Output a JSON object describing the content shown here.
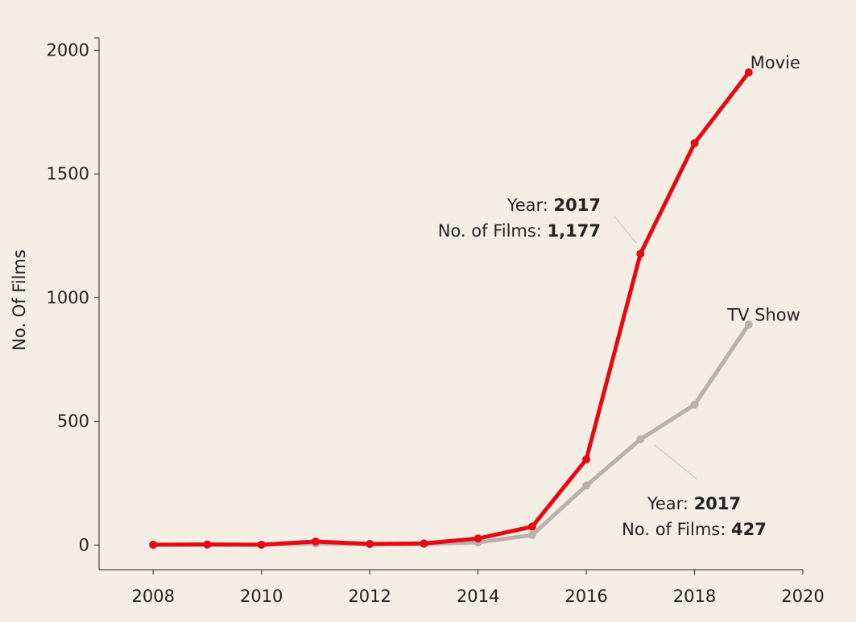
{
  "chart_data": {
    "type": "line",
    "title": "",
    "xlabel": "",
    "ylabel": "No. Of Films",
    "xlim": [
      2007,
      2020
    ],
    "ylim": [
      -100,
      2050
    ],
    "x_ticks": [
      "2008",
      "2010",
      "2012",
      "2014",
      "2016",
      "2018",
      "2020"
    ],
    "y_ticks": [
      "0",
      "500",
      "1000",
      "1500",
      "2000"
    ],
    "grid": false,
    "series": [
      {
        "name": "TV Show",
        "color": "#bab0ac",
        "x": [
          2008,
          2009,
          2010,
          2011,
          2012,
          2013,
          2014,
          2015,
          2016,
          2017,
          2018,
          2019
        ],
        "values": [
          1,
          1,
          1,
          6,
          3,
          4,
          10,
          40,
          240,
          427,
          567,
          891
        ]
      },
      {
        "name": "Movie",
        "color": "#e50914",
        "x": [
          2008,
          2009,
          2010,
          2011,
          2012,
          2013,
          2014,
          2015,
          2016,
          2017,
          2018,
          2019
        ],
        "values": [
          1,
          2,
          1,
          14,
          4,
          6,
          26,
          74,
          346,
          1177,
          1624,
          1910
        ]
      }
    ],
    "annotations": [
      {
        "series": "Movie",
        "year_label": "Year:",
        "year_value": "2017",
        "count_label": "No. of Films:",
        "count_value": "1,177"
      },
      {
        "series": "TV Show",
        "year_label": "Year:",
        "year_value": "2017",
        "count_label": "No. of Films:",
        "count_value": "427"
      }
    ]
  }
}
